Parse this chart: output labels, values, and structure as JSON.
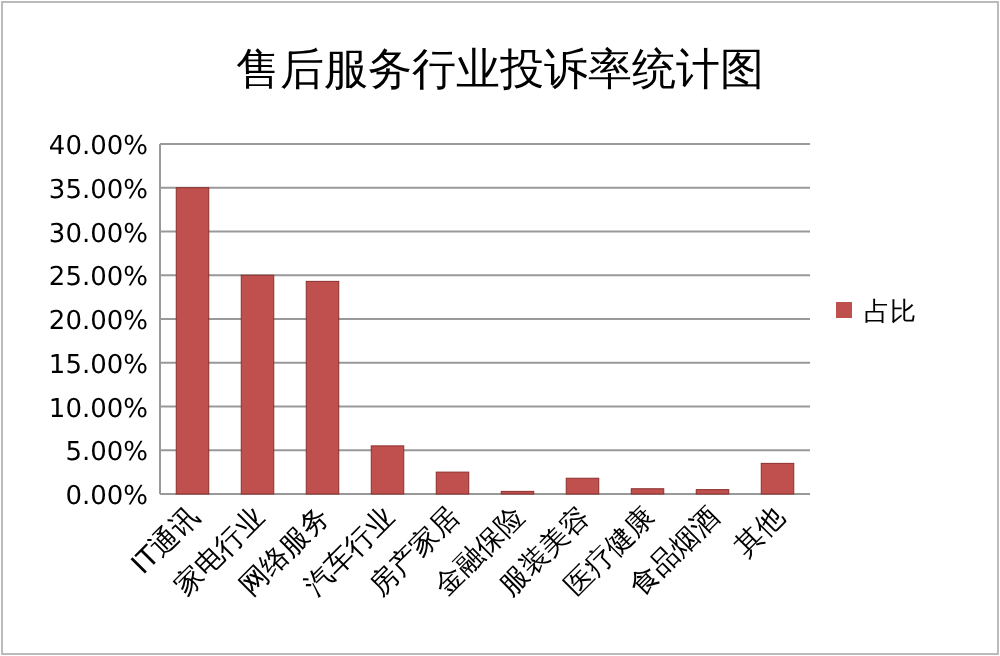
{
  "chart_data": {
    "type": "bar",
    "title": "售后服务行业投诉率统计图",
    "categories": [
      "IT通讯",
      "家电行业",
      "网络服务",
      "汽车行业",
      "房产家居",
      "金融保险",
      "服装美容",
      "医疗健康",
      "食品烟酒",
      "其他"
    ],
    "series": [
      {
        "name": "占比",
        "color": "#c0504d",
        "values": [
          35.0,
          25.0,
          24.3,
          5.5,
          2.5,
          0.3,
          1.8,
          0.6,
          0.5,
          3.5
        ]
      }
    ],
    "ylim": [
      0,
      40
    ],
    "yticks": [
      {
        "value": 0,
        "label": "0.00%"
      },
      {
        "value": 5,
        "label": "5.00%"
      },
      {
        "value": 10,
        "label": "10.00%"
      },
      {
        "value": 15,
        "label": "15.00%"
      },
      {
        "value": 20,
        "label": "20.00%"
      },
      {
        "value": 25,
        "label": "25.00%"
      },
      {
        "value": 30,
        "label": "30.00%"
      },
      {
        "value": 35,
        "label": "35.00%"
      },
      {
        "value": 40,
        "label": "40.00%"
      }
    ],
    "grid": "y",
    "legend": "right"
  }
}
